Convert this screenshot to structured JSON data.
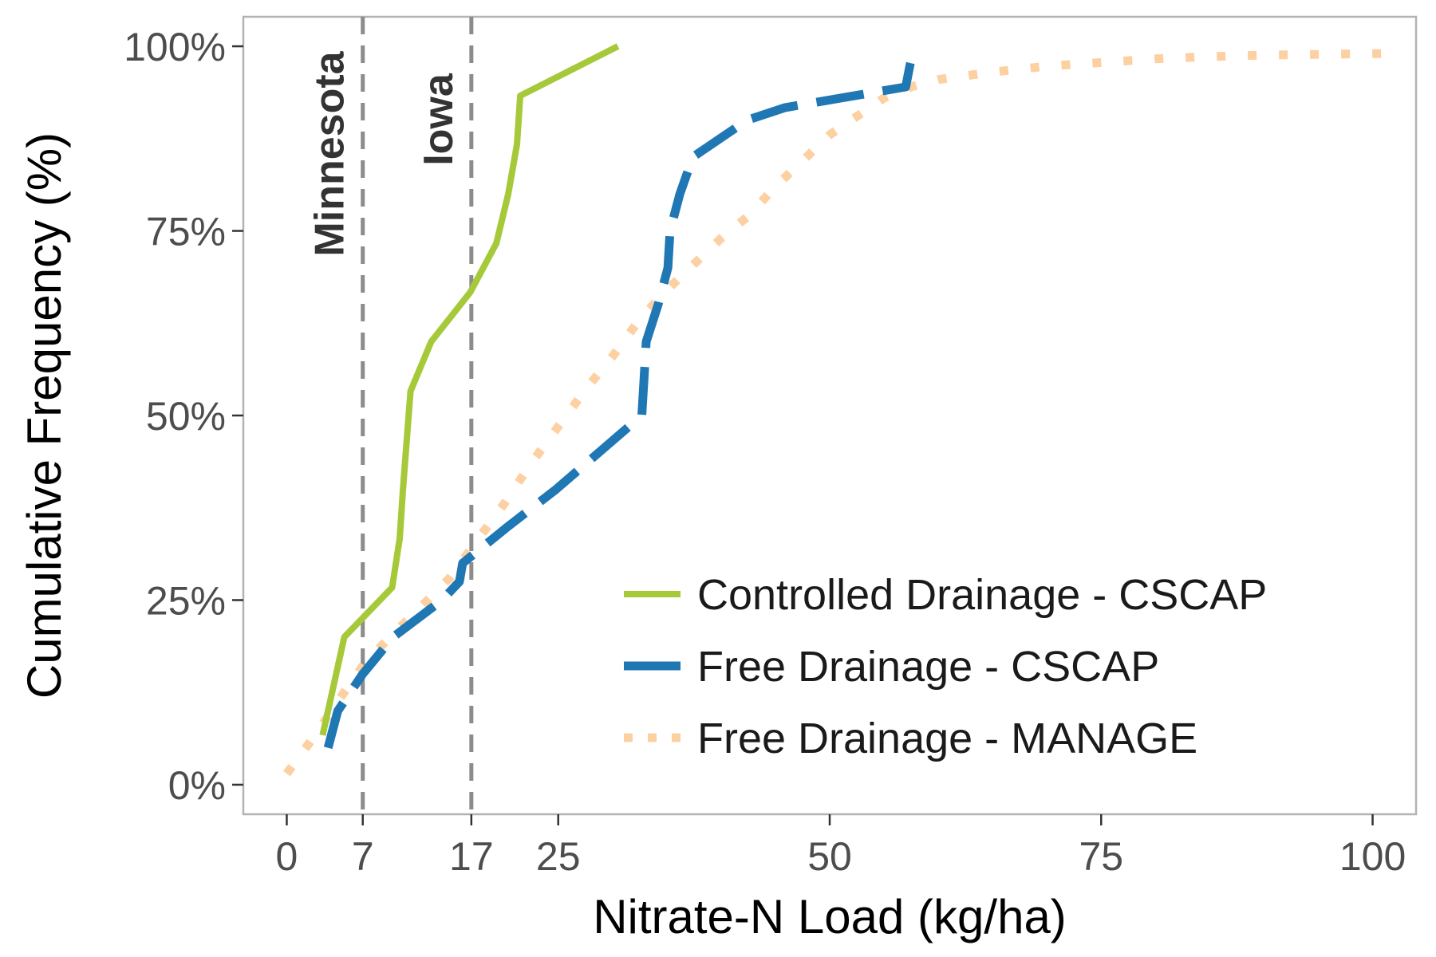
{
  "chart_data": {
    "type": "line",
    "title": "",
    "xlabel": "Nitrate-N Load (kg/ha)",
    "ylabel": "Cumulative Frequency (%)",
    "xlim": [
      -4,
      104
    ],
    "ylim": [
      -4,
      104
    ],
    "x_ticks": [
      0,
      7,
      17,
      25,
      50,
      75,
      100
    ],
    "y_ticks": [
      0,
      25,
      50,
      75,
      100
    ],
    "y_tick_labels": [
      "0%",
      "25%",
      "50%",
      "75%",
      "100%"
    ],
    "grid": false,
    "legend_position": "bottom-right",
    "reference_lines": [
      {
        "x": 7,
        "label": "Minnesota",
        "color": "#8c8c8c"
      },
      {
        "x": 17,
        "label": "Iowa",
        "color": "#8c8c8c"
      }
    ],
    "series": [
      {
        "name": "Controlled Drainage - CSCAP",
        "color": "#a6c93a",
        "dash": "solid",
        "x": [
          3.3,
          5.3,
          9.7,
          10.4,
          10.7,
          11.4,
          13.3,
          16.9,
          19.3,
          20.4,
          21.2,
          21.5,
          30.5
        ],
        "y": [
          6.7,
          20,
          26.7,
          33.3,
          40,
          53.3,
          60,
          66.7,
          73.3,
          80,
          86.7,
          93.3,
          100
        ]
      },
      {
        "name": "Free Drainage - CSCAP",
        "color": "#1f77b4",
        "dash": "dashed",
        "x": [
          3.8,
          4.7,
          7.0,
          9.8,
          14.3,
          15.9,
          16.2,
          20.4,
          24.8,
          32.7,
          32.9,
          33.1,
          34.2,
          35.1,
          35.3,
          36.2,
          37.4,
          42.4,
          45.9,
          57.0,
          57.4,
          57.8
        ],
        "y": [
          5,
          10,
          15,
          20,
          25,
          27.5,
          30,
          35,
          40,
          50,
          55,
          60,
          65,
          70,
          75,
          80,
          85,
          90,
          91.7,
          94.5,
          97.5,
          100
        ]
      },
      {
        "name": "Free Drainage - MANAGE",
        "color": "#fdd0a2",
        "dash": "dotted",
        "x": [
          0,
          2.5,
          4.8,
          7.2,
          9.5,
          12.3,
          15.0,
          17.5,
          20.0,
          22.5,
          25.0,
          27.5,
          30.0,
          32.5,
          35.0,
          37.5,
          40.0,
          42.5,
          45.0,
          47.5,
          50.0,
          52.5,
          55.0,
          57.5,
          60.0,
          65.0,
          70.0,
          75.0,
          80.0,
          85.0,
          90.0,
          95.0,
          100.0,
          102.5
        ],
        "y": [
          1.5,
          6.5,
          11.5,
          16.5,
          20.0,
          24.0,
          28.0,
          33.0,
          38.0,
          43.5,
          48.5,
          53.5,
          58.0,
          63.0,
          67.0,
          70.5,
          74.0,
          77.0,
          81.0,
          84.5,
          88.0,
          90.5,
          93.0,
          94.5,
          95.5,
          96.5,
          97.3,
          97.8,
          98.3,
          98.6,
          98.8,
          98.9,
          99.0,
          99.0
        ]
      }
    ]
  }
}
